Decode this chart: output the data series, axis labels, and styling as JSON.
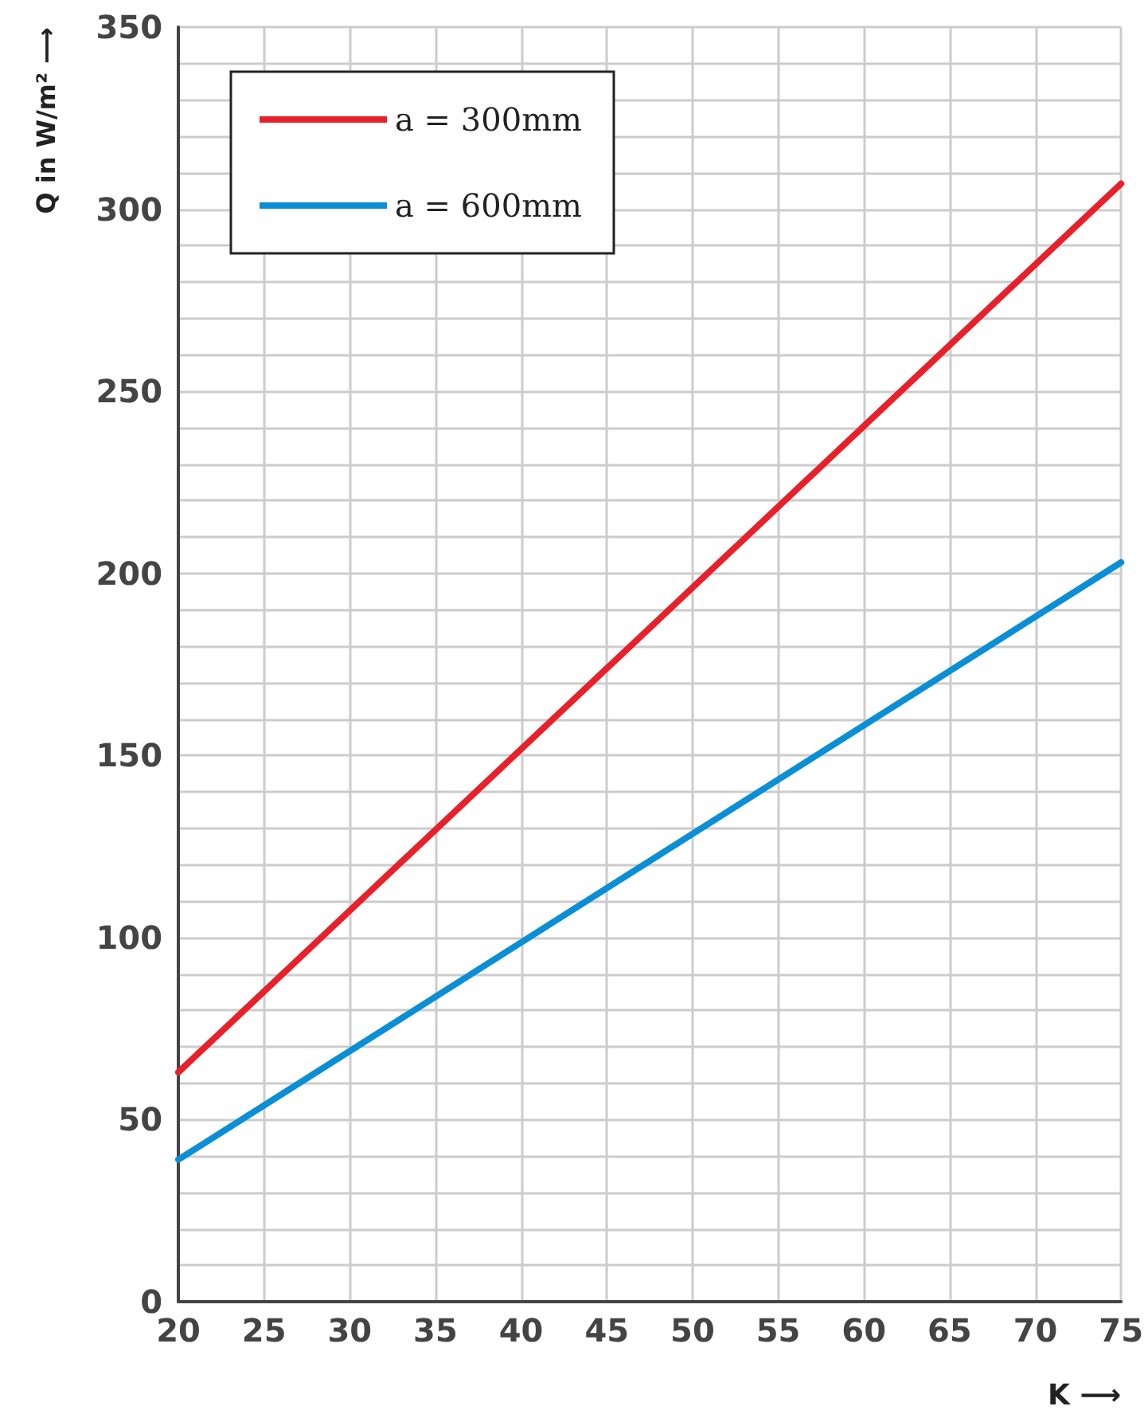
{
  "chart_data": {
    "type": "line",
    "xlabel": "K ⟶",
    "ylabel": "Q in W/m² ⟶",
    "x": [
      20,
      75
    ],
    "series": [
      {
        "name": "a = 300mm",
        "color": "#e8202a",
        "values": [
          63,
          307
        ]
      },
      {
        "name": "a = 600mm",
        "color": "#0a8fd6",
        "values": [
          39,
          203
        ]
      }
    ],
    "xlim": [
      20,
      75
    ],
    "xticks": [
      20,
      25,
      30,
      35,
      40,
      45,
      50,
      55,
      60,
      65,
      70,
      75
    ],
    "ylim": [
      0,
      350
    ],
    "yticks": [
      0,
      {
        "value": 10,
        "label": null
      },
      {
        "value": 20,
        "label": null
      },
      {
        "value": 30,
        "label": null
      },
      {
        "value": 40,
        "label": null
      },
      50,
      {
        "value": 60,
        "label": null
      },
      {
        "value": 70,
        "label": null
      },
      {
        "value": 80,
        "label": null
      },
      {
        "value": 90,
        "label": null
      },
      100,
      {
        "value": 110,
        "label": null
      },
      {
        "value": 120,
        "label": null
      },
      {
        "value": 130,
        "label": null
      },
      {
        "value": 140,
        "label": null
      },
      150,
      {
        "value": 160,
        "label": null
      },
      {
        "value": 170,
        "label": null
      },
      {
        "value": 180,
        "label": null
      },
      {
        "value": 190,
        "label": null
      },
      200,
      {
        "value": 210,
        "label": null
      },
      {
        "value": 220,
        "label": null
      },
      {
        "value": 230,
        "label": null
      },
      {
        "value": 240,
        "label": null
      },
      250,
      {
        "value": 260,
        "label": null
      },
      {
        "value": 270,
        "label": null
      },
      {
        "value": 280,
        "label": null
      },
      {
        "value": 290,
        "label": null
      },
      300,
      {
        "value": 310,
        "label": null
      },
      {
        "value": 320,
        "label": null
      },
      {
        "value": 330,
        "label": null
      },
      {
        "value": 340,
        "label": null
      },
      350
    ],
    "grid": true,
    "legend": "top left",
    "marker": "none",
    "line_style": "solid"
  }
}
